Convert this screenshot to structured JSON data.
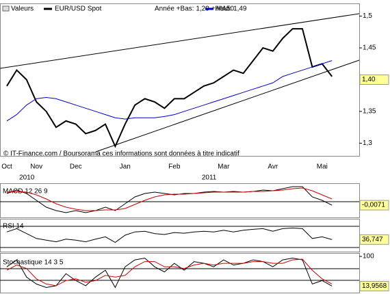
{
  "chart_data": [
    {
      "type": "line",
      "legend_title": "Valeurs",
      "range_note": "Année +Bas: 1,29 +Haut: 1,49",
      "source": "© IT-Finance.com / Boursorama ces informations sont données à titre indicatif",
      "categories": [
        "Oct",
        null,
        null,
        "Nov",
        null,
        null,
        null,
        "Dec",
        null,
        null,
        null,
        null,
        "Jan",
        null,
        null,
        null,
        null,
        "Feb",
        null,
        null,
        null,
        null,
        "Mar",
        null,
        null,
        null,
        null,
        "Avr",
        null,
        null,
        null,
        null,
        "Mai",
        null,
        null,
        null,
        null
      ],
      "x_groups": [
        {
          "label": "2010",
          "start": 0,
          "end": 11
        },
        {
          "label": "2011",
          "start": 12,
          "end": 36
        }
      ],
      "series": [
        {
          "name": "EUR/USD Spot",
          "color": "#000000",
          "values": [
            1.39,
            1.415,
            1.4,
            1.365,
            1.35,
            1.325,
            1.335,
            1.33,
            1.315,
            1.32,
            1.33,
            1.295,
            1.33,
            1.36,
            1.37,
            1.365,
            1.355,
            1.37,
            1.37,
            1.38,
            1.39,
            1.395,
            1.405,
            1.415,
            1.41,
            1.43,
            1.45,
            1.445,
            1.465,
            1.48,
            1.48,
            1.42,
            1.425,
            1.405,
            null,
            null,
            null
          ]
        },
        {
          "name": "MA50",
          "color": "#0000cc",
          "values": [
            1.335,
            1.345,
            1.36,
            1.37,
            1.372,
            1.37,
            1.365,
            1.36,
            1.355,
            1.35,
            1.345,
            1.34,
            1.338,
            1.34,
            1.34,
            1.34,
            1.342,
            1.345,
            1.35,
            1.355,
            1.36,
            1.365,
            1.37,
            1.375,
            1.38,
            1.385,
            1.39,
            1.395,
            1.405,
            1.41,
            1.415,
            1.42,
            1.425,
            1.43,
            null,
            null,
            null
          ]
        }
      ],
      "ylim": [
        1.28,
        1.52
      ],
      "yticks": [
        {
          "value": 1.3,
          "label": "1,3"
        },
        {
          "value": 1.35,
          "label": "1,35"
        },
        {
          "value": 1.45,
          "label": "1,45"
        },
        {
          "value": 1.5,
          "label": "1,5"
        }
      ],
      "last_value": {
        "value": 1.4,
        "label": "1,40"
      }
    },
    {
      "type": "line",
      "title": "MACD 12 26 9",
      "series": [
        {
          "color": "#000000",
          "values": [
            0.01,
            0.015,
            0.01,
            0.0,
            -0.01,
            -0.015,
            -0.018,
            -0.015,
            -0.018,
            -0.015,
            -0.01,
            -0.015,
            -0.005,
            0.005,
            0.01,
            0.012,
            0.01,
            0.008,
            0.01,
            0.01,
            0.012,
            0.013,
            0.012,
            0.013,
            0.012,
            0.013,
            0.015,
            0.014,
            0.017,
            0.02,
            0.02,
            0.005,
            0.0,
            -0.0071,
            null,
            null,
            null
          ]
        },
        {
          "color": "#cc0000",
          "values": [
            0.012,
            0.013,
            0.012,
            0.008,
            0.002,
            -0.005,
            -0.01,
            -0.013,
            -0.015,
            -0.015,
            -0.014,
            -0.014,
            -0.012,
            -0.006,
            0.0,
            0.005,
            0.008,
            0.009,
            0.009,
            0.01,
            0.011,
            0.012,
            0.012,
            0.012,
            0.012,
            0.013,
            0.013,
            0.014,
            0.015,
            0.017,
            0.018,
            0.014,
            0.008,
            0.002,
            null,
            null,
            null
          ]
        }
      ],
      "ylim": [
        -0.025,
        0.025
      ],
      "yticks": [],
      "last_value": {
        "value": -0.0071,
        "label": "-0,0071"
      }
    },
    {
      "type": "line",
      "title": "RSI 14",
      "series": [
        {
          "color": "#000000",
          "values": [
            60,
            70,
            55,
            40,
            35,
            30,
            38,
            35,
            30,
            38,
            45,
            28,
            50,
            60,
            62,
            55,
            52,
            58,
            56,
            60,
            62,
            60,
            65,
            60,
            65,
            68,
            70,
            62,
            70,
            72,
            70,
            40,
            45,
            36.747,
            null,
            null,
            null
          ]
        }
      ],
      "ylim": [
        0,
        100
      ],
      "yticks": [],
      "last_value": {
        "value": 36.747,
        "label": "36,747"
      }
    },
    {
      "type": "line",
      "title": "Stochastique 14 3 5",
      "series": [
        {
          "color": "#000000",
          "values": [
            70,
            90,
            40,
            20,
            10,
            15,
            50,
            30,
            15,
            40,
            60,
            10,
            70,
            90,
            95,
            70,
            55,
            80,
            60,
            85,
            80,
            70,
            90,
            75,
            80,
            90,
            85,
            70,
            90,
            95,
            90,
            20,
            30,
            13.9568,
            null,
            null,
            null
          ]
        },
        {
          "color": "#cc0000",
          "values": [
            60,
            75,
            65,
            35,
            20,
            15,
            30,
            35,
            25,
            30,
            45,
            40,
            45,
            70,
            85,
            85,
            70,
            70,
            65,
            75,
            80,
            75,
            80,
            80,
            80,
            85,
            85,
            80,
            80,
            90,
            92,
            60,
            35,
            20,
            null,
            null,
            null
          ]
        }
      ],
      "ylim": [
        -5,
        110
      ],
      "yticks": [
        100
      ],
      "last_value": {
        "value": 13.9568,
        "label": "13,9568"
      }
    }
  ]
}
